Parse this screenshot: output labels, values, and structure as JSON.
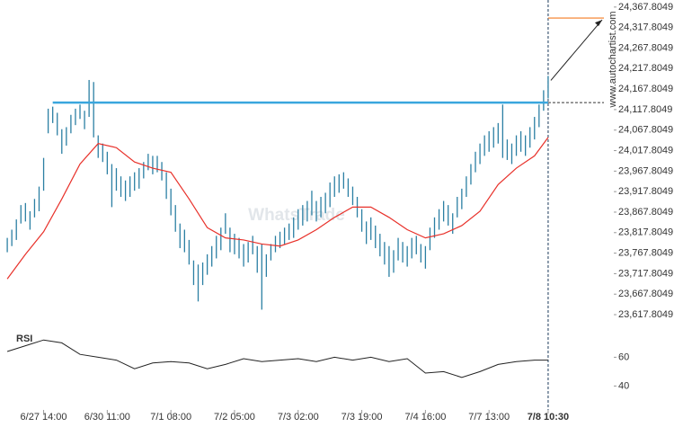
{
  "chart_data": [
    {
      "type": "candlestick",
      "color": "#2b7fa3",
      "xlim": [
        -1.6,
        120
      ],
      "xticks": [
        {
          "value": 8,
          "label": "6/27 14:00"
        },
        {
          "value": 22,
          "label": "6/30 11:00"
        },
        {
          "value": 36,
          "label": "7/1 08:00"
        },
        {
          "value": 50,
          "label": "7/2 05:00"
        },
        {
          "value": 64,
          "label": "7/3 02:00"
        },
        {
          "value": 78,
          "label": "7/3 19:00"
        },
        {
          "value": 92,
          "label": "7/4 16:00"
        },
        {
          "value": 106,
          "label": "7/7 13:00"
        },
        {
          "value": 119,
          "label": "7/8 10:30"
        }
      ],
      "ylim": [
        23585,
        24385
      ],
      "yticks": [
        {
          "value": 23617.8049,
          "label": "23,617.8049"
        },
        {
          "value": 23667.8049,
          "label": "23,667.8049"
        },
        {
          "value": 23717.8049,
          "label": "23,717.8049"
        },
        {
          "value": 23767.8049,
          "label": "23,767.8049"
        },
        {
          "value": 23817.8049,
          "label": "23,817.8049"
        },
        {
          "value": 23867.8049,
          "label": "23,867.8049"
        },
        {
          "value": 23917.8049,
          "label": "23,917.8049"
        },
        {
          "value": 23967.8049,
          "label": "23,967.8049"
        },
        {
          "value": 24017.8049,
          "label": "24,017.8049"
        },
        {
          "value": 24067.8049,
          "label": "24,067.8049"
        },
        {
          "value": 24117.8049,
          "label": "24,117.8049"
        },
        {
          "value": 24167.8049,
          "label": "24,167.8049"
        },
        {
          "value": 24217.8049,
          "label": "24,217.8049"
        },
        {
          "value": 24267.8049,
          "label": "24,267.8049"
        },
        {
          "value": 24317.8049,
          "label": "24,317.8049"
        },
        {
          "value": 24367.8049,
          "label": "24,367.8049"
        }
      ],
      "high": [
        23805,
        23825,
        23850,
        23885,
        23890,
        23870,
        23900,
        23930,
        24000,
        24120,
        24125,
        24110,
        24070,
        24075,
        24105,
        24120,
        24130,
        24115,
        24190,
        24185,
        24055,
        24035,
        24015,
        23985,
        23975,
        23955,
        23945,
        23955,
        23965,
        23975,
        23990,
        24010,
        24005,
        24005,
        23990,
        23965,
        23925,
        23885,
        23840,
        23825,
        23800,
        23750,
        23740,
        23745,
        23765,
        23785,
        23810,
        23830,
        23865,
        23830,
        23815,
        23805,
        23790,
        23795,
        23810,
        23785,
        23790,
        23765,
        23790,
        23810,
        23820,
        23830,
        23840,
        23855,
        23875,
        23885,
        23895,
        23920,
        23895,
        23905,
        23915,
        23940,
        23955,
        23960,
        23965,
        23950,
        23930,
        23905,
        23875,
        23845,
        23855,
        23835,
        23815,
        23795,
        23785,
        23775,
        23805,
        23795,
        23785,
        23805,
        23810,
        23790,
        23785,
        23830,
        23855,
        23875,
        23895,
        23885,
        23865,
        23905,
        23925,
        23955,
        23985,
        24015,
        24035,
        24055,
        24065,
        24075,
        24085,
        24130,
        24045,
        24035,
        24055,
        24065,
        24055,
        24075,
        24100,
        24130,
        24165,
        24200
      ],
      "low": [
        23770,
        23785,
        23800,
        23840,
        23845,
        23825,
        23855,
        23870,
        23920,
        24060,
        24085,
        24055,
        24010,
        24030,
        24060,
        24080,
        24095,
        24070,
        24100,
        24050,
        24000,
        23990,
        23960,
        23880,
        23920,
        23905,
        23895,
        23905,
        23920,
        23925,
        23950,
        23970,
        23960,
        23965,
        23945,
        23900,
        23860,
        23820,
        23780,
        23770,
        23740,
        23690,
        23650,
        23690,
        23715,
        23735,
        23755,
        23775,
        23815,
        23770,
        23765,
        23755,
        23735,
        23745,
        23765,
        23720,
        23630,
        23710,
        23750,
        23770,
        23780,
        23790,
        23800,
        23805,
        23825,
        23835,
        23845,
        23860,
        23845,
        23855,
        23865,
        23880,
        23905,
        23915,
        23925,
        23905,
        23885,
        23855,
        23820,
        23790,
        23800,
        23780,
        23760,
        23740,
        23710,
        23720,
        23750,
        23745,
        23735,
        23755,
        23765,
        23745,
        23730,
        23775,
        23805,
        23825,
        23845,
        23835,
        23815,
        23855,
        23875,
        23905,
        23935,
        23965,
        23985,
        24005,
        24015,
        24025,
        24035,
        24000,
        23995,
        23985,
        24005,
        24015,
        24005,
        24025,
        24045,
        24075,
        24115,
        24145
      ],
      "ma": {
        "color": "#e8312a",
        "x": [
          0,
          4,
          8,
          12,
          16,
          20,
          24,
          28,
          32,
          36,
          40,
          44,
          48,
          52,
          56,
          60,
          64,
          68,
          72,
          76,
          80,
          84,
          88,
          92,
          96,
          100,
          104,
          108,
          112,
          116,
          119
        ],
        "values": [
          23705,
          23765,
          23820,
          23900,
          23985,
          24035,
          24025,
          23990,
          23975,
          23965,
          23900,
          23830,
          23805,
          23800,
          23790,
          23785,
          23800,
          23825,
          23855,
          23880,
          23880,
          23855,
          23825,
          23805,
          23815,
          23835,
          23870,
          23935,
          23975,
          24005,
          24050
        ]
      },
      "level": {
        "value": 24135,
        "from": 10,
        "color": "#3aa6dd"
      },
      "target": {
        "value": 24341,
        "color": "#f47b20"
      },
      "watermark": "WhatsTrade",
      "source": "www.autochartist.com"
    },
    {
      "type": "line",
      "title": "RSI",
      "color": "#222222",
      "ylim": [
        24,
        74
      ],
      "yticks": [
        40,
        60
      ],
      "x": [
        0,
        4,
        8,
        12,
        16,
        20,
        24,
        28,
        32,
        36,
        40,
        44,
        48,
        52,
        56,
        60,
        64,
        68,
        72,
        76,
        80,
        84,
        88,
        92,
        96,
        100,
        104,
        108,
        112,
        116,
        119
      ],
      "values": [
        64,
        68,
        72,
        70,
        62,
        60,
        58,
        52,
        56,
        57,
        56,
        52,
        55,
        59,
        57,
        58,
        59,
        57,
        60,
        58,
        60,
        57,
        59,
        49,
        50,
        46,
        50,
        55,
        57,
        58,
        58
      ]
    }
  ]
}
